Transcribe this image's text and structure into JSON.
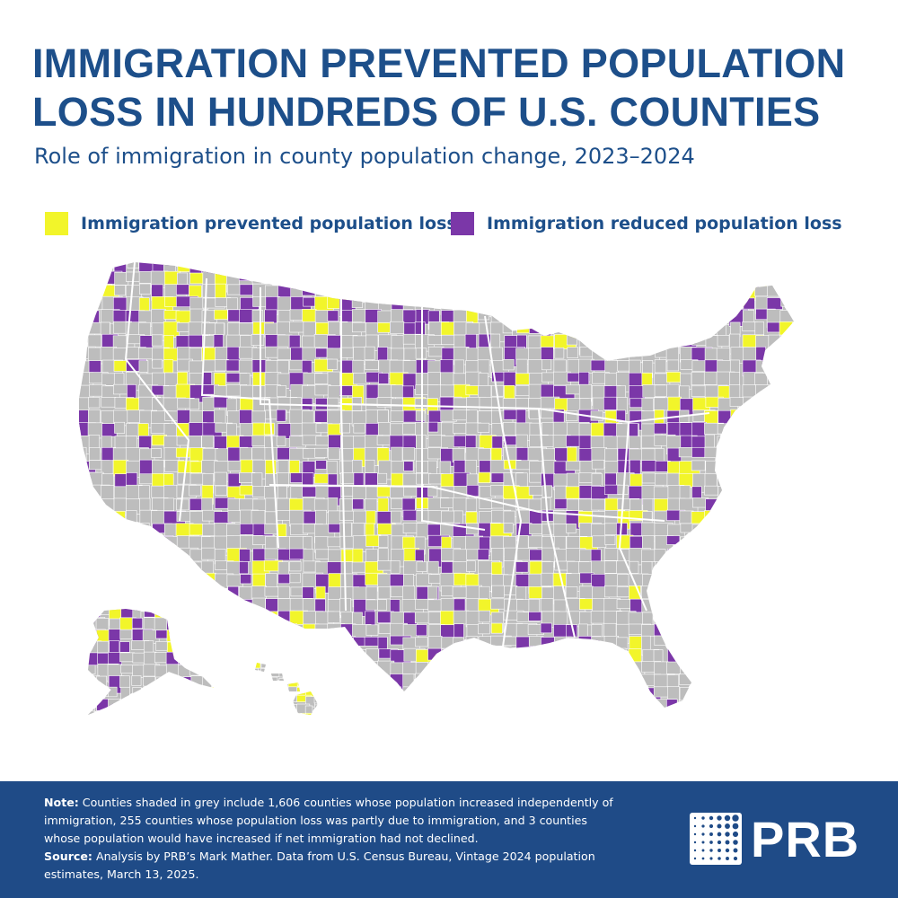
{
  "header": {
    "title": "IMMIGRATION PREVENTED POPULATION LOSS IN HUNDREDS OF U.S. COUNTIES",
    "subtitle": "Role of immigration in county population change, 2023–2024"
  },
  "legend": {
    "prevented": {
      "label": "Immigration prevented population loss",
      "color": "#f2f52a"
    },
    "reduced": {
      "label": "Immigration reduced population loss",
      "color": "#7b37a8"
    }
  },
  "map": {
    "base_color": "#bdbdbd",
    "border_color": "#ffffff",
    "regions": [
      "Contiguous United States",
      "Alaska",
      "Hawaii"
    ]
  },
  "footer": {
    "note_label": "Note:",
    "note_text": " Counties shaded in grey include 1,606 counties whose population increased independently of immigration, 255 counties whose population loss was partly due to immigration, and 3 counties whose population would have increased if net immigration had not declined.",
    "source_label": "Source:",
    "source_text": " Analysis by PRB’s Mark Mather. Data from U.S. Census Bureau, Vintage 2024 population estimates, March 13, 2025.",
    "logo_text": "PRB",
    "background": "#1f4b87"
  }
}
